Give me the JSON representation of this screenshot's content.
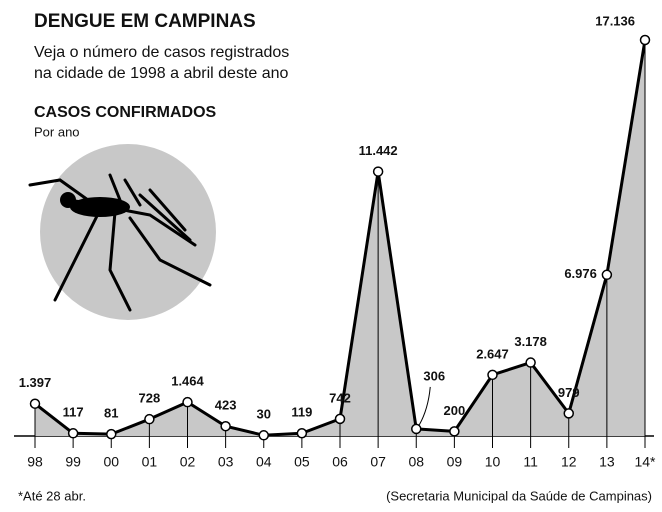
{
  "chart_data": {
    "type": "area",
    "title": "DENGUE EM CAMPINAS",
    "subtitle": [
      "Veja o número de casos registrados",
      "na cidade de 1998 a abril deste ano"
    ],
    "section_title": "CASOS CONFIRMADOS",
    "section_subtitle": "Por ano",
    "categories": [
      "98",
      "99",
      "00",
      "01",
      "02",
      "03",
      "04",
      "05",
      "06",
      "07",
      "08",
      "09",
      "10",
      "11",
      "12",
      "13",
      "14*"
    ],
    "values": [
      1397,
      117,
      81,
      728,
      1464,
      423,
      30,
      119,
      742,
      11442,
      306,
      200,
      2647,
      3178,
      979,
      6976,
      17136
    ],
    "value_labels": [
      "1.397",
      "117",
      "81",
      "728",
      "1.464",
      "423",
      "30",
      "119",
      "742",
      "11.442",
      "306",
      "200",
      "2.647",
      "3.178",
      "979",
      "6.976",
      "17.136"
    ],
    "color": "#c8c8c8",
    "footnote": "*Até 28 abr.",
    "source": "(Secretaria Municipal da Saúde de Campinas)"
  }
}
